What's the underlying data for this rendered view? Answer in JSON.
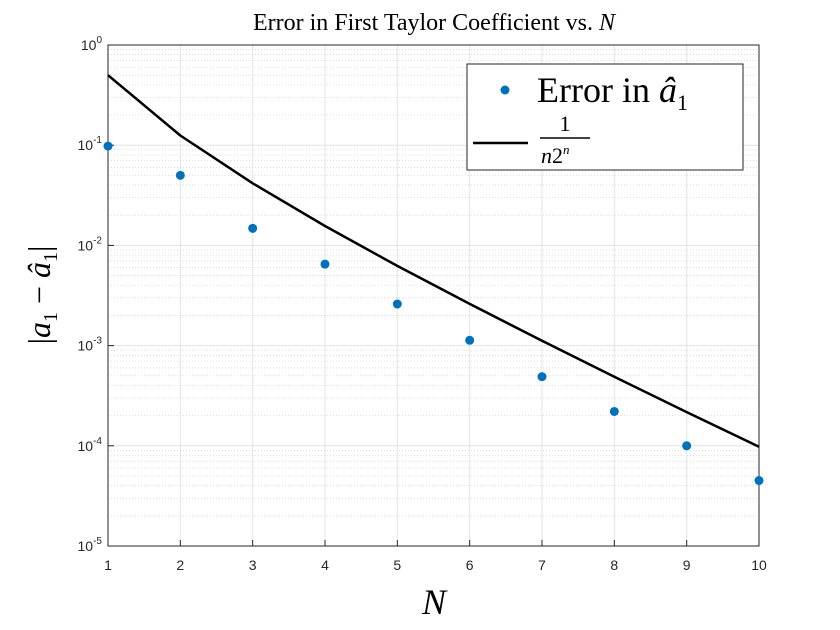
{
  "chart_data": {
    "type": "scatter",
    "title": "Error in First Taylor Coefficient vs. N",
    "xlabel": "N",
    "ylabel": "|a1 − â1|",
    "xlim": [
      1,
      10
    ],
    "ylim": [
      1e-05,
      1
    ],
    "yscale": "log",
    "grid": true,
    "minor_grid": true,
    "legend_position": "top-right",
    "x_ticks": [
      "1",
      "2",
      "3",
      "4",
      "5",
      "6",
      "7",
      "8",
      "9",
      "10"
    ],
    "y_ticks": [
      {
        "base": "10",
        "exp": "-5",
        "value": 1e-05
      },
      {
        "base": "10",
        "exp": "-4",
        "value": 0.0001
      },
      {
        "base": "10",
        "exp": "-3",
        "value": 0.001
      },
      {
        "base": "10",
        "exp": "-2",
        "value": 0.01
      },
      {
        "base": "10",
        "exp": "-1",
        "value": 0.1
      },
      {
        "base": "10",
        "exp": "0",
        "value": 1
      }
    ],
    "series": [
      {
        "name": "Error in â1",
        "kind": "scatter",
        "color": "#0072bd",
        "x": [
          1,
          2,
          3,
          4,
          5,
          6,
          7,
          8,
          9,
          10
        ],
        "y": [
          0.098,
          0.05,
          0.0148,
          0.0065,
          0.0026,
          0.00113,
          0.00049,
          0.00022,
          0.0001,
          4.5e-05
        ]
      },
      {
        "name": "1/(n2^n)",
        "kind": "line",
        "color": "#000000",
        "x": [
          1,
          2,
          3,
          4,
          5,
          6,
          7,
          8,
          9,
          10
        ],
        "y": [
          0.5,
          0.125,
          0.041667,
          0.015625,
          0.00625,
          0.0026042,
          0.0011161,
          0.00048828,
          0.00021701,
          9.7656e-05
        ]
      }
    ]
  }
}
